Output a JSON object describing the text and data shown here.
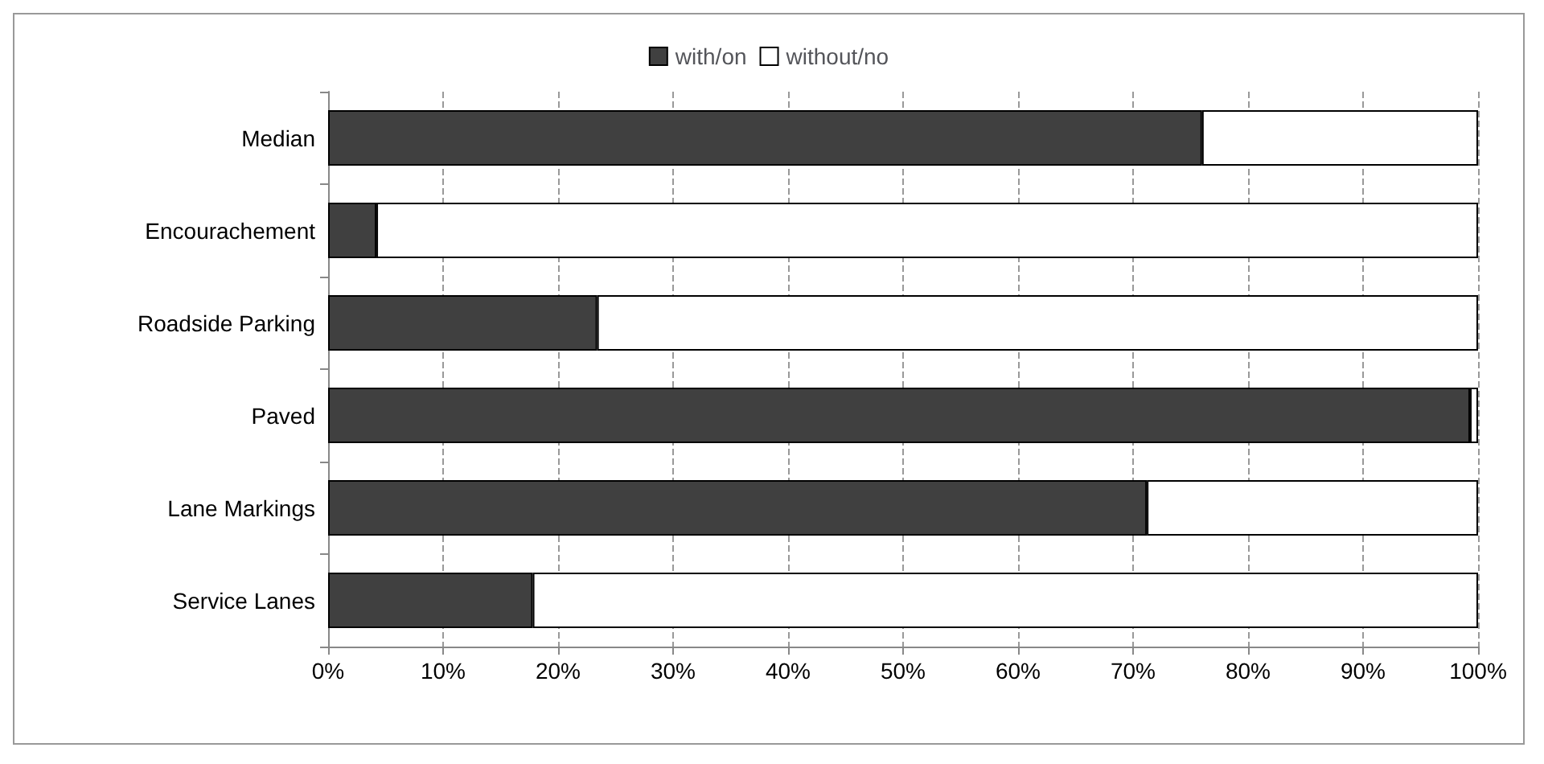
{
  "chart_data": {
    "type": "bar",
    "orientation": "horizontal",
    "stacked": true,
    "categories": [
      "Median",
      "Encourachement",
      "Roadside Parking",
      "Paved",
      "Lane Markings",
      "Service Lanes"
    ],
    "series": [
      {
        "name": "with/on",
        "color": "#404040",
        "values": [
          76,
          4.2,
          23.4,
          99.3,
          71.2,
          17.8
        ]
      },
      {
        "name": "without/no",
        "color": "#ffffff",
        "values": [
          24,
          95.8,
          76.6,
          0.7,
          28.8,
          82.2
        ]
      }
    ],
    "xlim": [
      0,
      100
    ],
    "xticks": [
      {
        "value": 0,
        "label": "0%"
      },
      {
        "value": 10,
        "label": "10%"
      },
      {
        "value": 20,
        "label": "20%"
      },
      {
        "value": 30,
        "label": "30%"
      },
      {
        "value": 40,
        "label": "40%"
      },
      {
        "value": 50,
        "label": "50%"
      },
      {
        "value": 60,
        "label": "60%"
      },
      {
        "value": 70,
        "label": "70%"
      },
      {
        "value": 80,
        "label": "80%"
      },
      {
        "value": 90,
        "label": "90%"
      },
      {
        "value": 100,
        "label": "100%"
      }
    ],
    "grid": "x",
    "legend": "top"
  }
}
